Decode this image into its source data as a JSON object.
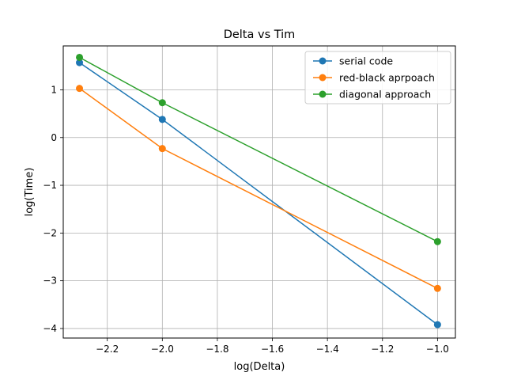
{
  "chart_data": {
    "type": "line",
    "title": "Delta vs Tim",
    "xlabel": "log(Delta)",
    "ylabel": "log(Time)",
    "xlim": [
      -2.36,
      -0.935
    ],
    "ylim": [
      -4.2,
      1.92
    ],
    "xticks": [
      -2.2,
      -2.0,
      -1.8,
      -1.6,
      -1.4,
      -1.2,
      -1.0
    ],
    "xtick_labels": [
      "−2.2",
      "−2.0",
      "−1.8",
      "−1.6",
      "−1.4",
      "−1.2",
      "−1.0"
    ],
    "yticks": [
      -4,
      -3,
      -2,
      -1,
      0,
      1
    ],
    "ytick_labels": [
      "−4",
      "−3",
      "−2",
      "−1",
      "0",
      "1"
    ],
    "grid": true,
    "legend_position": "top-right",
    "x": [
      -2.301,
      -2.0,
      -1.0
    ],
    "series": [
      {
        "name": "serial code",
        "color": "#1f77b4",
        "values": [
          1.57,
          0.38,
          -3.92
        ]
      },
      {
        "name": "red-black aprpoach",
        "color": "#ff7f0e",
        "values": [
          1.03,
          -0.23,
          -3.16
        ]
      },
      {
        "name": "diagonal approach",
        "color": "#2ca02c",
        "values": [
          1.68,
          0.73,
          -2.18
        ]
      }
    ]
  }
}
